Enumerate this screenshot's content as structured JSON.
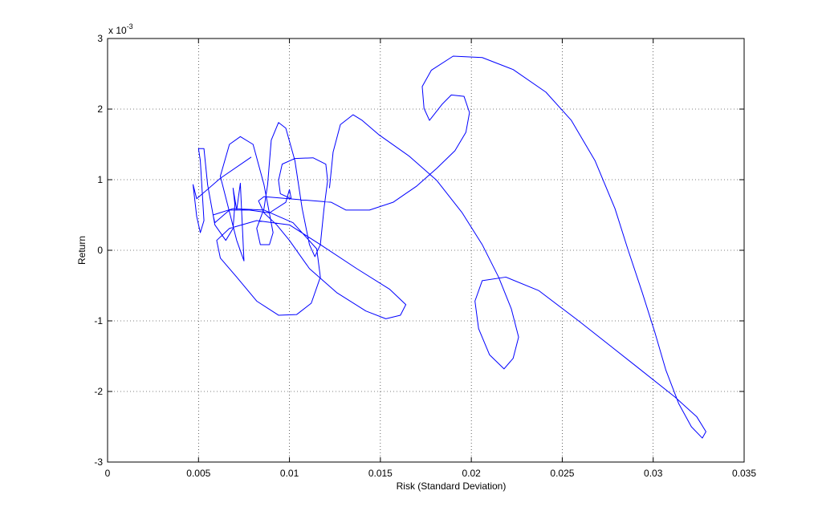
{
  "chart_data": {
    "type": "line",
    "xlabel": "Risk (Standard Deviation)",
    "ylabel": "Return",
    "y_multiplier": {
      "base": "x 10",
      "exponent": "-3"
    },
    "xlim": [
      0,
      0.035
    ],
    "xticks": [
      0,
      0.005,
      0.01,
      0.015,
      0.02,
      0.025,
      0.03,
      0.035
    ],
    "ylim": [
      -3,
      3
    ],
    "yticks": [
      -3,
      -2,
      -1,
      0,
      1,
      2,
      3
    ],
    "grid": true,
    "color": "#0000ff",
    "x": [
      0.0079,
      0.0062,
      0.0049,
      0.0047,
      0.0049,
      0.0051,
      0.0053,
      0.0051,
      0.005,
      0.0053,
      0.0055,
      0.0059,
      0.0065,
      0.0069,
      0.007,
      0.0069,
      0.0071,
      0.0073,
      0.0075,
      0.0071,
      0.0062,
      0.0067,
      0.0073,
      0.008,
      0.0086,
      0.0091,
      0.0089,
      0.0084,
      0.0082,
      0.0086,
      0.0088,
      0.009,
      0.0094,
      0.0098,
      0.0103,
      0.0107,
      0.0111,
      0.0114,
      0.0117,
      0.0119,
      0.0121,
      0.012,
      0.0113,
      0.0103,
      0.0096,
      0.0094,
      0.0095,
      0.0101,
      0.01,
      0.0098,
      0.0089,
      0.0078,
      0.0067,
      0.0059,
      0.0058,
      0.0069,
      0.0086,
      0.0102,
      0.0115,
      0.0117,
      0.0112,
      0.0104,
      0.0094,
      0.0082,
      0.0071,
      0.0062,
      0.006,
      0.0067,
      0.0082,
      0.01,
      0.0117,
      0.0137,
      0.0155,
      0.0164,
      0.0161,
      0.0153,
      0.0142,
      0.0126,
      0.0111,
      0.01,
      0.0093,
      0.0086,
      0.0083,
      0.0086,
      0.0123,
      0.0131,
      0.0144,
      0.0157,
      0.017,
      0.0181,
      0.0191,
      0.0197,
      0.0199,
      0.0196,
      0.0189,
      0.0184,
      0.0177,
      0.0174,
      0.0173,
      0.0178,
      0.019,
      0.0206,
      0.0223,
      0.0241,
      0.0255,
      0.0268,
      0.0279,
      0.0286,
      0.0294,
      0.0301,
      0.0307,
      0.0314,
      0.0321,
      0.0327,
      0.0329,
      0.0324,
      0.0312,
      0.029,
      0.0259,
      0.0237,
      0.0219,
      0.0206,
      0.0202,
      0.0204,
      0.021,
      0.0218,
      0.0223,
      0.0226,
      0.0222,
      0.0215,
      0.0206,
      0.0195,
      0.0181,
      0.0166,
      0.0149,
      0.014,
      0.0135,
      0.0128,
      0.0124,
      0.0122
    ],
    "values": [
      1.32,
      1.02,
      0.73,
      0.93,
      0.48,
      0.25,
      0.42,
      1.27,
      1.44,
      1.44,
      0.93,
      0.36,
      0.14,
      0.31,
      0.65,
      0.88,
      0.57,
      0.95,
      -0.15,
      0.14,
      1.05,
      1.5,
      1.61,
      1.5,
      0.93,
      0.25,
      0.08,
      0.08,
      0.31,
      0.59,
      0.93,
      1.56,
      1.81,
      1.73,
      1.27,
      0.59,
      0.08,
      -0.09,
      0.08,
      0.59,
      0.99,
      1.22,
      1.31,
      1.3,
      1.22,
      0.99,
      0.8,
      0.73,
      0.86,
      0.68,
      0.53,
      0.57,
      0.57,
      0.39,
      0.5,
      0.59,
      0.57,
      0.39,
      0.02,
      -0.38,
      -0.75,
      -0.91,
      -0.92,
      -0.72,
      -0.38,
      -0.11,
      0.14,
      0.31,
      0.42,
      0.36,
      0.08,
      -0.26,
      -0.55,
      -0.77,
      -0.92,
      -0.97,
      -0.86,
      -0.6,
      -0.26,
      0.14,
      0.36,
      0.53,
      0.7,
      0.76,
      0.68,
      0.57,
      0.57,
      0.68,
      0.91,
      1.16,
      1.41,
      1.67,
      1.95,
      2.18,
      2.2,
      2.07,
      1.84,
      2.01,
      2.32,
      2.55,
      2.75,
      2.73,
      2.56,
      2.24,
      1.84,
      1.27,
      0.59,
      0.02,
      -0.6,
      -1.17,
      -1.7,
      -2.17,
      -2.5,
      -2.66,
      -2.57,
      -2.36,
      -2.08,
      -1.63,
      -1.0,
      -0.57,
      -0.38,
      -0.43,
      -0.72,
      -1.11,
      -1.48,
      -1.68,
      -1.53,
      -1.23,
      -0.83,
      -0.38,
      0.08,
      0.53,
      0.99,
      1.33,
      1.64,
      1.84,
      1.92,
      1.78,
      1.39,
      0.88
    ]
  }
}
